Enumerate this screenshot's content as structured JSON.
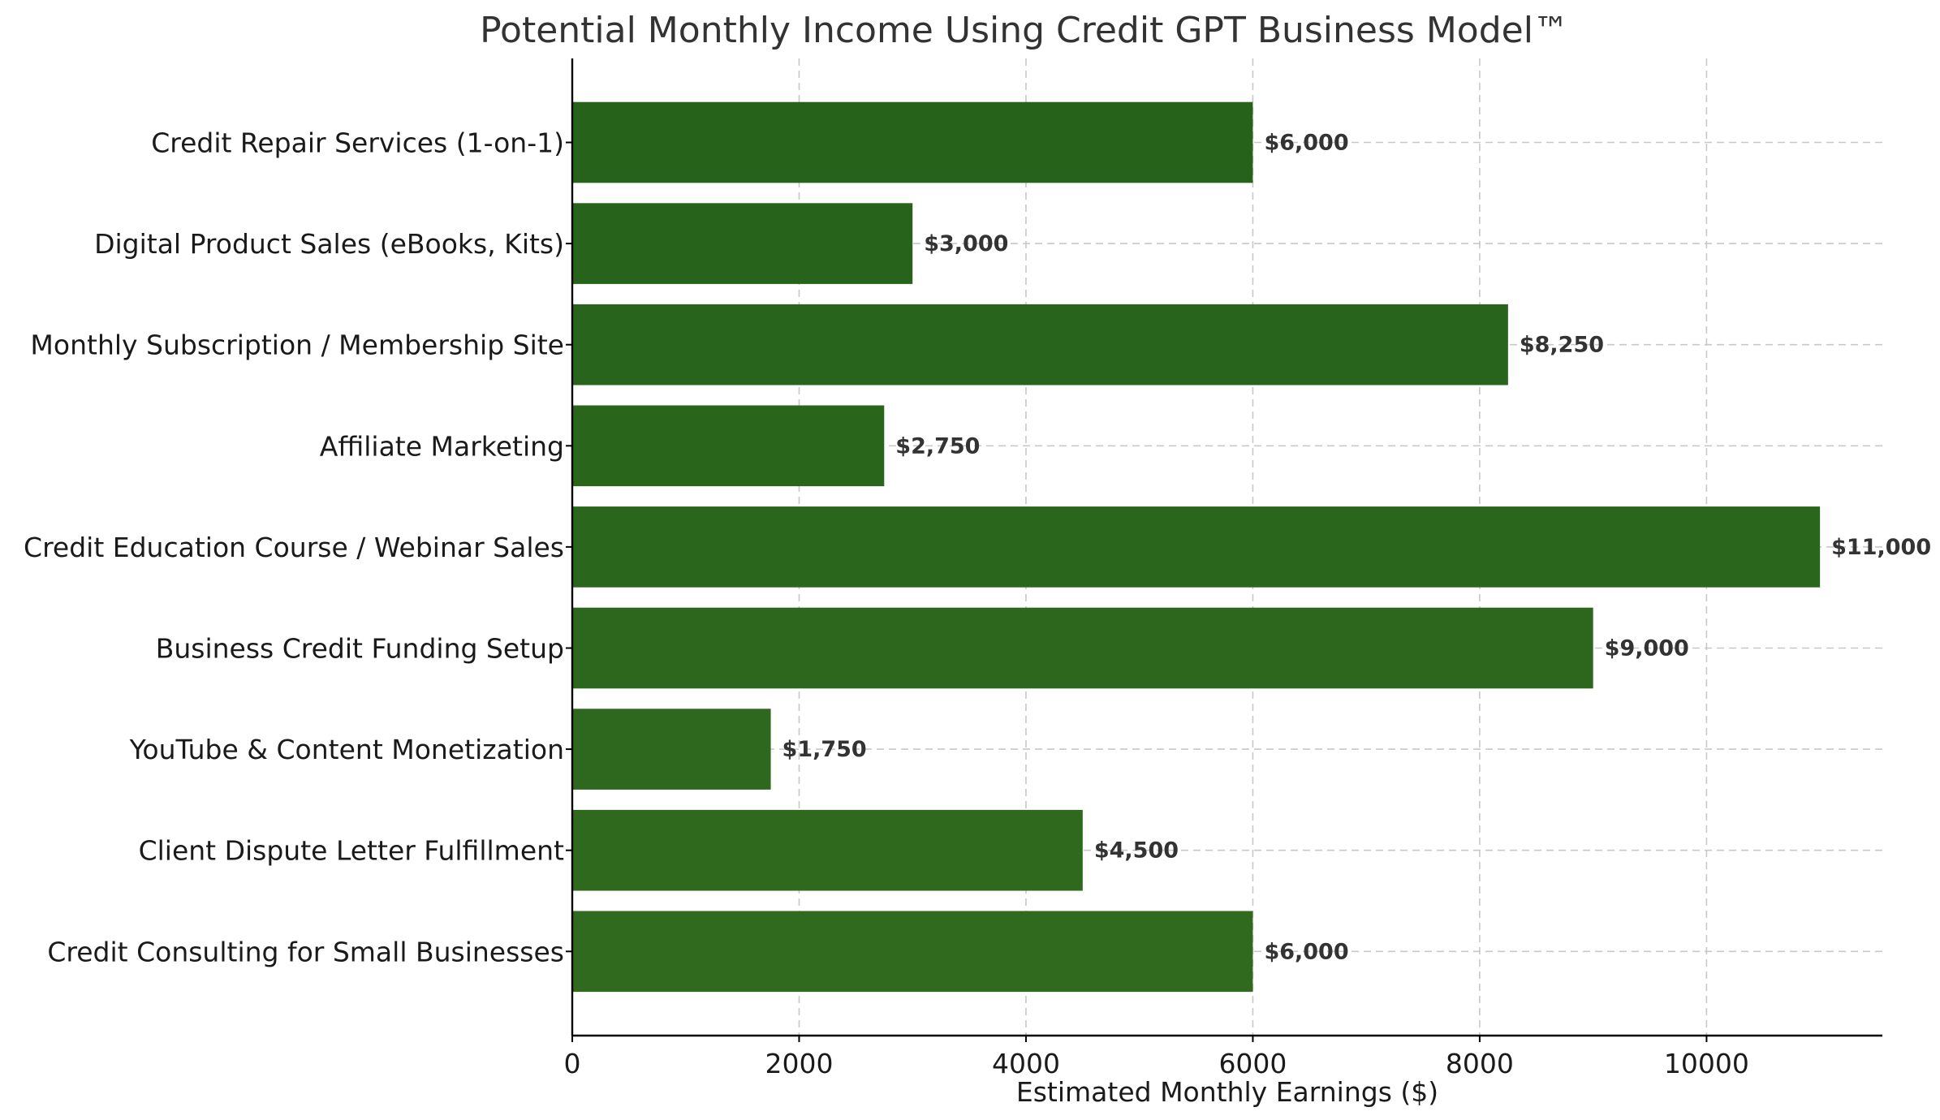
{
  "chart_data": {
    "type": "bar",
    "orientation": "horizontal",
    "title": "Potential Monthly Income Using Credit GPT Business Model™",
    "xlabel": "Estimated Monthly Earnings ($)",
    "ylabel": "",
    "categories": [
      "Credit Repair Services (1-on-1)",
      "Digital Product Sales (eBooks, Kits)",
      "Monthly Subscription / Membership Site",
      "Affiliate Marketing",
      "Credit Education Course / Webinar Sales",
      "Business Credit Funding Setup",
      "YouTube & Content Monetization",
      "Client Dispute Letter Fulfillment",
      "Credit Consulting for Small Businesses"
    ],
    "values": [
      6000,
      3000,
      8250,
      2750,
      11000,
      9000,
      1750,
      4500,
      6000
    ],
    "data_labels": [
      "$6,000",
      "$3,000",
      "$8,250",
      "$2,750",
      "$11,000",
      "$9,000",
      "$1,750",
      "$4,500",
      "$6,000"
    ],
    "xlim": [
      0,
      11550
    ],
    "xticks": [
      0,
      2000,
      4000,
      6000,
      8000,
      10000
    ],
    "xtick_labels": [
      "0",
      "2000",
      "4000",
      "6000",
      "8000",
      "10000"
    ],
    "grid": true,
    "bar_colors": [
      "#27621b",
      "#28631b",
      "#29641c",
      "#2a651c",
      "#2b661d",
      "#2c671d",
      "#2d681e",
      "#2e691e",
      "#2f6a1f"
    ]
  }
}
